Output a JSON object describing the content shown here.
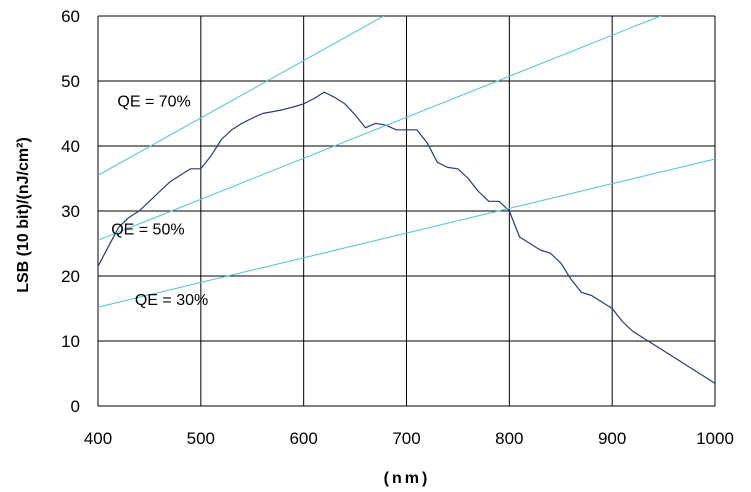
{
  "chart_data": {
    "type": "line",
    "title": "",
    "xlabel": "(nm)",
    "ylabel": "LSB (10 bit)/(nJ/cm²)",
    "xlim": [
      400,
      1000
    ],
    "ylim": [
      0,
      60
    ],
    "x_ticks": [
      "400",
      "500",
      "600",
      "700",
      "800",
      "900",
      "1000"
    ],
    "y_ticks": [
      "0",
      "10",
      "20",
      "30",
      "40",
      "50",
      "60"
    ],
    "grid": true,
    "legend": "none",
    "colors": {
      "sensor": "#2b3a78",
      "qe": "#5cc6d6",
      "grid": "#000000"
    },
    "series": [
      {
        "x": [
          400,
          410,
          420,
          430,
          440,
          450,
          460,
          470,
          480,
          490,
          500,
          510,
          520,
          530,
          540,
          550,
          560,
          570,
          580,
          590,
          600,
          610,
          620,
          630,
          640,
          650,
          660,
          670,
          680,
          690,
          700,
          710,
          720,
          730,
          740,
          750,
          760,
          770,
          780,
          790,
          800,
          810,
          820,
          830,
          840,
          850,
          860,
          870,
          880,
          890,
          900,
          910,
          920,
          930,
          940,
          950,
          960,
          970,
          980,
          990,
          1000
        ],
        "values": [
          21.5,
          24.5,
          27.5,
          29,
          30,
          31.5,
          33,
          34.5,
          35.5,
          36.5,
          36.5,
          38.5,
          41,
          42.5,
          43.5,
          44.3,
          45,
          45.3,
          45.6,
          46,
          46.5,
          47.3,
          48.3,
          47.5,
          46.5,
          44.8,
          42.8,
          43.5,
          43.2,
          42.5,
          42.5,
          42.5,
          40.5,
          37.5,
          36.7,
          36.5,
          35,
          33,
          31.5,
          31.5,
          30,
          26,
          25,
          24,
          23.5,
          22,
          19.5,
          17.5,
          17,
          16,
          15,
          13,
          11.5,
          10.5,
          9.5,
          8.5,
          7.5,
          6.5,
          5.5,
          4.5,
          3.5
        ]
      },
      {
        "x": [
          400,
          680
        ],
        "values": [
          35.5,
          60.2
        ]
      },
      {
        "x": [
          400,
          950
        ],
        "values": [
          25.5,
          60.2
        ]
      },
      {
        "x": [
          400,
          1000
        ],
        "values": [
          15.2,
          38
        ]
      }
    ],
    "annotations": [
      {
        "text": "QE = 70%",
        "x": 449,
        "y": 47
      },
      {
        "text": "QE = 50%",
        "x": 443,
        "y": 27.3
      },
      {
        "text": "QE = 30%",
        "x": 466,
        "y": 16.5
      }
    ]
  }
}
